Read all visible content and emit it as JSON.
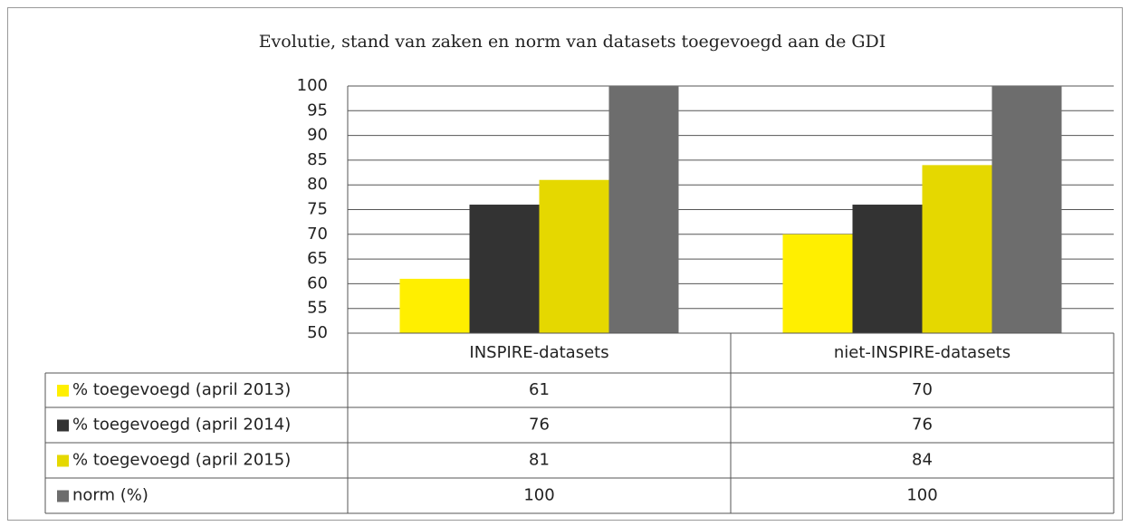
{
  "chart_data": {
    "type": "bar",
    "title": "Evolutie, stand van zaken en norm van datasets toegevoegd aan de GDI",
    "categories": [
      "INSPIRE-datasets",
      "niet-INSPIRE-datasets"
    ],
    "series": [
      {
        "name": "% toegevoegd (april 2013)",
        "color": "#ffef00",
        "values": [
          61,
          70
        ]
      },
      {
        "name": "% toegevoegd (april 2014)",
        "color": "#333333",
        "values": [
          76,
          76
        ]
      },
      {
        "name": "% toegevoegd (april 2015)",
        "color": "#e5d800",
        "values": [
          81,
          84
        ]
      },
      {
        "name": "norm (%)",
        "color": "#6d6d6d",
        "values": [
          100,
          100
        ]
      }
    ],
    "ylim": [
      50,
      100
    ],
    "yticks": [
      50,
      55,
      60,
      65,
      70,
      75,
      80,
      85,
      90,
      95,
      100
    ],
    "grid": true
  }
}
